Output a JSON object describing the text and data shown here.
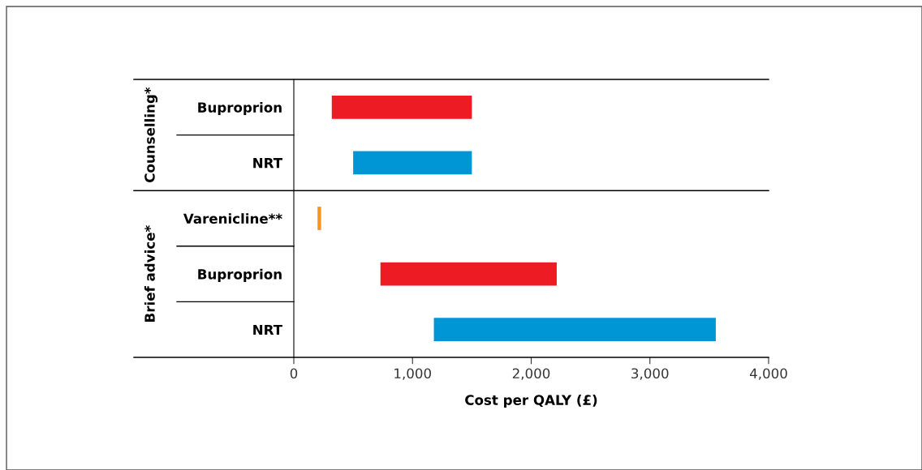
{
  "chart_data": {
    "type": "bar",
    "orientation": "horizontal",
    "xlabel": "Cost per QALY (£)",
    "categories": [
      "Buproprion",
      "NRT",
      "Varenicline**",
      "Buproprion",
      "NRT"
    ],
    "base": [
      320,
      500,
      200,
      730,
      1180
    ],
    "values": [
      1180,
      1000,
      30,
      1485,
      2375
    ],
    "colors": [
      "#ed1c24",
      "#0096d6",
      "#f7941d",
      "#ed1c24",
      "#0096d6"
    ],
    "xlim": [
      0,
      4000
    ],
    "xticks": [
      0,
      {
        "value": 1000,
        "label": "1,000"
      },
      {
        "value": 2000,
        "label": "2,000"
      },
      {
        "value": 3000,
        "label": "3,000"
      },
      {
        "value": 4000,
        "label": "4,000"
      }
    ],
    "annotations": [
      "Counselling*",
      "Brief advice*"
    ],
    "grid": false,
    "legend": false
  }
}
